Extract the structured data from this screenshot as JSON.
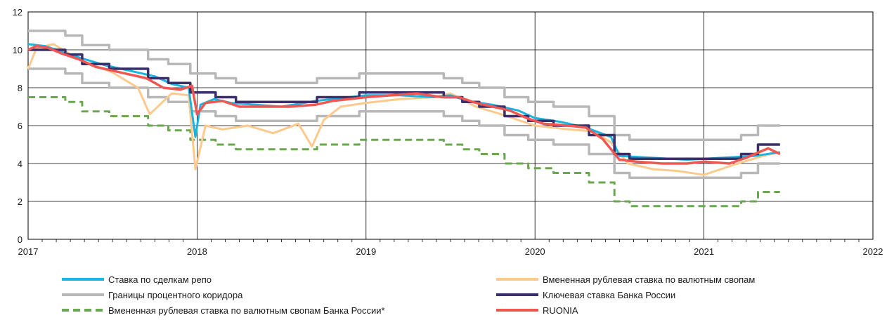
{
  "chart_data": {
    "type": "line",
    "title": "",
    "xlabel": "",
    "ylabel": "",
    "xlim": [
      2017,
      2022
    ],
    "ylim": [
      0,
      12
    ],
    "x_ticks": [
      "2017",
      "2018",
      "2019",
      "2020",
      "2021",
      "2022"
    ],
    "y_ticks": [
      "0",
      "2",
      "4",
      "6",
      "8",
      "10",
      "12"
    ],
    "grid": true,
    "legend_position": "bottom",
    "series": [
      {
        "key": "repo",
        "name": "Ставка по сделкам репо",
        "color": "#1ab4e0",
        "style": "solid",
        "x": [
          2017.0,
          2017.1,
          2017.2,
          2017.3,
          2017.45,
          2017.6,
          2017.75,
          2017.85,
          2017.95,
          2017.99,
          2018.02,
          2018.1,
          2018.2,
          2018.35,
          2018.5,
          2018.7,
          2018.9,
          2019.0,
          2019.2,
          2019.4,
          2019.5,
          2019.6,
          2019.75,
          2019.9,
          2020.0,
          2020.15,
          2020.3,
          2020.45,
          2020.5,
          2020.7,
          2020.9,
          2021.1,
          2021.3,
          2021.45
        ],
        "y": [
          10.3,
          10.2,
          9.9,
          9.6,
          9.2,
          8.9,
          8.6,
          8.2,
          8.0,
          5.4,
          7.1,
          7.4,
          7.2,
          7.1,
          7.0,
          7.3,
          7.5,
          7.6,
          7.6,
          7.5,
          7.6,
          7.3,
          7.1,
          6.8,
          6.4,
          6.2,
          5.9,
          5.4,
          4.4,
          4.3,
          4.2,
          4.3,
          4.4,
          4.6
        ]
      },
      {
        "key": "fxswap",
        "name": "Вмененная рублевая ставка по валютным свопам",
        "color": "#fdc98c",
        "style": "solid",
        "x": [
          2017.0,
          2017.05,
          2017.15,
          2017.3,
          2017.5,
          2017.65,
          2017.72,
          2017.85,
          2017.95,
          2017.99,
          2018.05,
          2018.15,
          2018.3,
          2018.45,
          2018.6,
          2018.68,
          2018.75,
          2018.85,
          2019.0,
          2019.2,
          2019.4,
          2019.5,
          2019.65,
          2019.8,
          2020.0,
          2020.2,
          2020.35,
          2020.45,
          2020.55,
          2020.7,
          2020.85,
          2021.0,
          2021.2,
          2021.35,
          2021.45
        ],
        "y": [
          9.0,
          10.1,
          10.3,
          9.5,
          8.8,
          8.0,
          6.6,
          7.7,
          7.6,
          3.7,
          6.0,
          5.8,
          6.0,
          5.6,
          6.1,
          4.9,
          6.3,
          7.0,
          7.2,
          7.4,
          7.5,
          7.7,
          7.0,
          6.6,
          6.0,
          5.8,
          5.7,
          5.1,
          4.0,
          3.7,
          3.6,
          3.4,
          4.0,
          4.4,
          4.6
        ]
      },
      {
        "key": "corridor",
        "name": "Границы процентного коридора",
        "color": "#b8b8b8",
        "style": "solid",
        "x": [
          2017.0,
          2017.22,
          2017.22,
          2017.32,
          2017.32,
          2017.48,
          2017.48,
          2017.71,
          2017.71,
          2017.83,
          2017.83,
          2017.96,
          2017.96,
          2018.11,
          2018.11,
          2018.23,
          2018.23,
          2018.71,
          2018.71,
          2018.96,
          2018.96,
          2019.46,
          2019.46,
          2019.57,
          2019.57,
          2019.67,
          2019.67,
          2019.82,
          2019.82,
          2019.96,
          2019.96,
          2020.11,
          2020.11,
          2020.32,
          2020.32,
          2020.47,
          2020.47,
          2020.56,
          2020.56,
          2021.22,
          2021.22,
          2021.32,
          2021.32,
          2021.45
        ],
        "y_upper": [
          11.0,
          11.0,
          10.75,
          10.75,
          10.25,
          10.25,
          10.0,
          10.0,
          9.5,
          9.5,
          9.25,
          9.25,
          8.75,
          8.75,
          8.5,
          8.5,
          8.25,
          8.25,
          8.5,
          8.5,
          8.75,
          8.75,
          8.5,
          8.5,
          8.25,
          8.25,
          8.0,
          8.0,
          7.5,
          7.5,
          7.25,
          7.25,
          7.0,
          7.0,
          6.5,
          6.5,
          5.5,
          5.5,
          5.25,
          5.25,
          5.5,
          5.5,
          6.0,
          6.0
        ],
        "y_lower": [
          9.0,
          9.0,
          8.75,
          8.75,
          8.25,
          8.25,
          8.0,
          8.0,
          7.5,
          7.5,
          7.25,
          7.25,
          6.75,
          6.75,
          6.5,
          6.5,
          6.25,
          6.25,
          6.5,
          6.5,
          6.75,
          6.75,
          6.5,
          6.5,
          6.25,
          6.25,
          6.0,
          6.0,
          5.5,
          5.5,
          5.25,
          5.25,
          5.0,
          5.0,
          4.5,
          4.5,
          3.5,
          3.5,
          3.25,
          3.25,
          3.5,
          3.5,
          4.0,
          4.0
        ]
      },
      {
        "key": "keyrate",
        "name": "Ключевая ставка Банка России",
        "color": "#3b2f6b",
        "style": "solid",
        "x": [
          2017.0,
          2017.22,
          2017.22,
          2017.32,
          2017.32,
          2017.48,
          2017.48,
          2017.71,
          2017.71,
          2017.83,
          2017.83,
          2017.96,
          2017.96,
          2018.11,
          2018.11,
          2018.23,
          2018.23,
          2018.71,
          2018.71,
          2018.96,
          2018.96,
          2019.46,
          2019.46,
          2019.57,
          2019.57,
          2019.67,
          2019.67,
          2019.82,
          2019.82,
          2019.96,
          2019.96,
          2020.11,
          2020.11,
          2020.32,
          2020.32,
          2020.47,
          2020.47,
          2020.56,
          2020.56,
          2021.22,
          2021.22,
          2021.32,
          2021.32,
          2021.45
        ],
        "y": [
          10.0,
          10.0,
          9.75,
          9.75,
          9.25,
          9.25,
          9.0,
          9.0,
          8.5,
          8.5,
          8.25,
          8.25,
          7.75,
          7.75,
          7.5,
          7.5,
          7.25,
          7.25,
          7.5,
          7.5,
          7.75,
          7.75,
          7.5,
          7.5,
          7.25,
          7.25,
          7.0,
          7.0,
          6.5,
          6.5,
          6.25,
          6.25,
          6.0,
          6.0,
          5.5,
          5.5,
          4.5,
          4.5,
          4.25,
          4.25,
          4.5,
          4.5,
          5.0,
          5.0
        ]
      },
      {
        "key": "cbr_fxswap",
        "name": "Вмененная рублевая ставка по валютным свопам Банка России*",
        "color": "#6aa84f",
        "style": "dashed",
        "x": [
          2017.0,
          2017.22,
          2017.22,
          2017.32,
          2017.32,
          2017.48,
          2017.48,
          2017.71,
          2017.71,
          2017.83,
          2017.83,
          2017.96,
          2017.96,
          2018.11,
          2018.11,
          2018.23,
          2018.23,
          2018.71,
          2018.71,
          2018.96,
          2018.96,
          2019.46,
          2019.46,
          2019.57,
          2019.57,
          2019.67,
          2019.67,
          2019.82,
          2019.82,
          2019.96,
          2019.96,
          2020.11,
          2020.11,
          2020.32,
          2020.32,
          2020.47,
          2020.47,
          2020.56,
          2020.56,
          2021.22,
          2021.22,
          2021.32,
          2021.32,
          2021.45
        ],
        "y": [
          7.5,
          7.5,
          7.25,
          7.25,
          6.75,
          6.75,
          6.5,
          6.5,
          6.0,
          6.0,
          5.75,
          5.75,
          5.25,
          5.25,
          5.0,
          5.0,
          4.75,
          4.75,
          5.0,
          5.0,
          5.25,
          5.25,
          5.0,
          5.0,
          4.75,
          4.75,
          4.5,
          4.5,
          4.0,
          4.0,
          3.75,
          3.75,
          3.5,
          3.5,
          3.0,
          3.0,
          2.0,
          2.0,
          1.75,
          1.75,
          2.0,
          2.0,
          2.5,
          2.5
        ]
      },
      {
        "key": "ruonia",
        "name": "RUONIA",
        "color": "#ef5753",
        "style": "solid",
        "x": [
          2017.0,
          2017.05,
          2017.12,
          2017.2,
          2017.3,
          2017.4,
          2017.5,
          2017.6,
          2017.7,
          2017.8,
          2017.9,
          2017.97,
          2018.0,
          2018.05,
          2018.15,
          2018.25,
          2018.4,
          2018.55,
          2018.7,
          2018.8,
          2018.9,
          2019.0,
          2019.15,
          2019.3,
          2019.45,
          2019.55,
          2019.65,
          2019.75,
          2019.85,
          2019.95,
          2020.05,
          2020.2,
          2020.3,
          2020.4,
          2020.5,
          2020.6,
          2020.75,
          2020.9,
          2021.0,
          2021.15,
          2021.25,
          2021.3,
          2021.38,
          2021.45
        ],
        "y": [
          10.0,
          10.2,
          10.1,
          9.8,
          9.5,
          9.1,
          8.9,
          8.7,
          8.5,
          8.0,
          7.9,
          8.1,
          6.6,
          7.2,
          7.3,
          7.0,
          7.0,
          7.0,
          7.1,
          7.3,
          7.4,
          7.5,
          7.6,
          7.7,
          7.5,
          7.5,
          7.2,
          7.0,
          6.8,
          6.4,
          6.1,
          6.0,
          5.9,
          5.3,
          4.2,
          4.1,
          4.0,
          4.0,
          4.1,
          4.0,
          4.3,
          4.5,
          4.8,
          4.5
        ]
      }
    ]
  },
  "legend": [
    {
      "key": "repo",
      "label": "Ставка по сделкам репо"
    },
    {
      "key": "fxswap",
      "label": "Вмененная рублевая ставка по валютным свопам"
    },
    {
      "key": "corridor",
      "label": "Границы процентного коридора"
    },
    {
      "key": "keyrate",
      "label": "Ключевая ставка Банка России"
    },
    {
      "key": "cbr_fxswap",
      "label": "Вмененная рублевая ставка по валютным свопам Банка России*"
    },
    {
      "key": "ruonia",
      "label": "RUONIA"
    }
  ]
}
